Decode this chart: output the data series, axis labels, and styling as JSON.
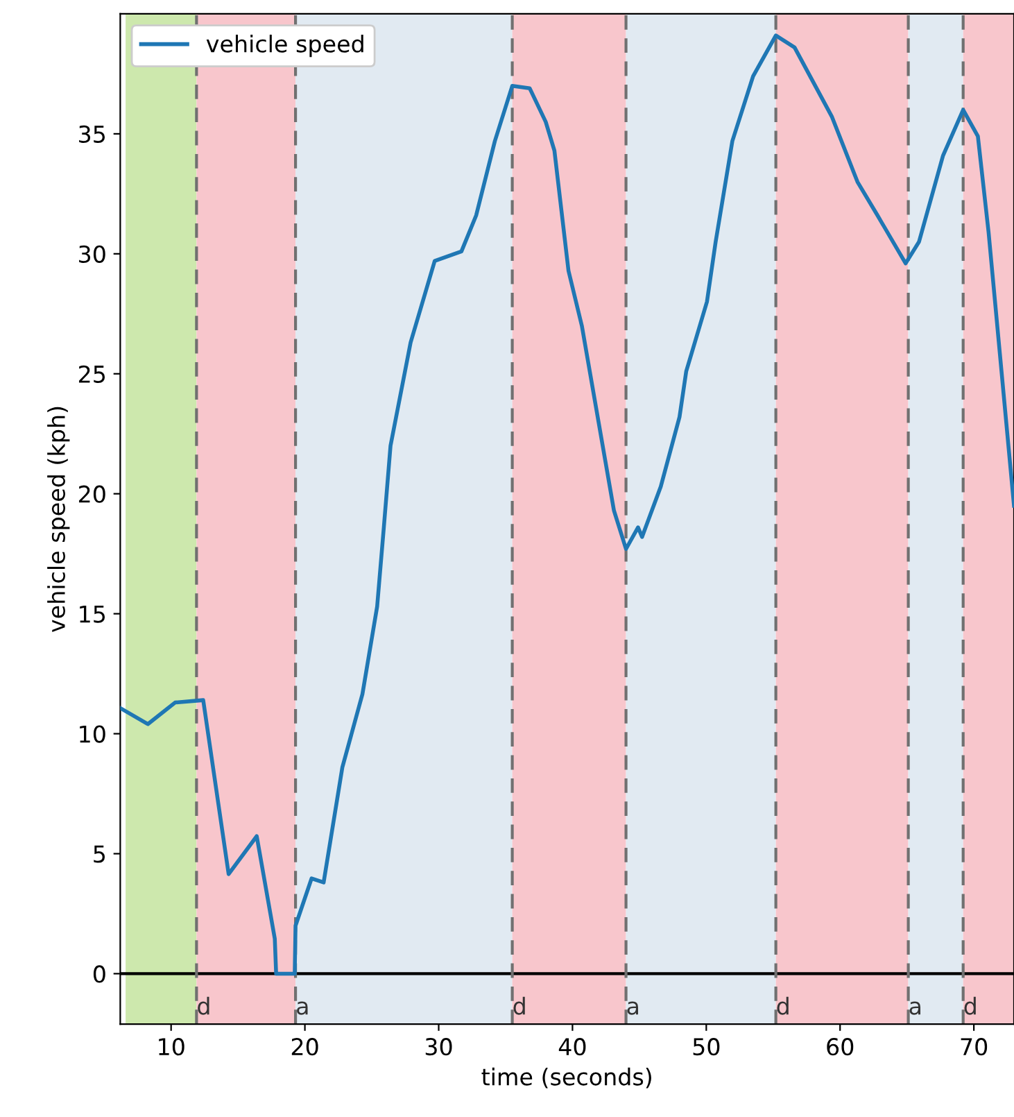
{
  "chart_data": {
    "type": "line",
    "xlabel": "time (seconds)",
    "ylabel": "vehicle speed (kph)",
    "xlim": [
      6.2,
      73
    ],
    "ylim": [
      -2.1,
      40
    ],
    "xticks": [
      10,
      20,
      30,
      40,
      50,
      60,
      70
    ],
    "yticks": [
      0,
      5,
      10,
      15,
      20,
      25,
      30,
      35
    ],
    "grid": false,
    "legend": "top left",
    "series": [
      {
        "name": "vehicle speed",
        "color": "#1f77b4",
        "x": [
          6.2,
          8.26,
          10.3,
          12.4,
          14.3,
          16.4,
          17.75,
          17.85,
          19.24,
          19.3,
          20.5,
          21.4,
          22.8,
          24.3,
          25.4,
          25.9,
          26.4,
          27.9,
          29.7,
          31.7,
          32.8,
          34.2,
          35.5,
          36.8,
          38.0,
          38.65,
          39.7,
          40.7,
          43.1,
          44.0,
          44.9,
          45.2,
          46.6,
          48.0,
          48.5,
          50.05,
          50.7,
          51.95,
          53.5,
          55.2,
          56.6,
          59.4,
          61.3,
          62.8,
          64.9,
          65.9,
          67.7,
          69.2,
          70.3,
          71.1,
          73.0
        ],
        "values": [
          11.07,
          10.4,
          11.3,
          11.4,
          4.15,
          5.73,
          1.46,
          0,
          0,
          2.0,
          3.97,
          3.8,
          8.6,
          11.65,
          15.3,
          18.6,
          22.0,
          26.3,
          29.7,
          30.1,
          31.6,
          34.7,
          37.0,
          36.9,
          35.5,
          34.3,
          29.3,
          27.0,
          19.3,
          17.7,
          18.6,
          18.2,
          20.3,
          23.2,
          25.1,
          28.0,
          30.5,
          34.7,
          37.4,
          39.1,
          38.6,
          35.7,
          33.0,
          31.6,
          29.6,
          30.5,
          34.1,
          36.0,
          34.9,
          30.9,
          19.5
        ]
      }
    ],
    "ref_lines": [
      {
        "axis": "y",
        "value": 0,
        "color": "#000000",
        "line_style": "solid"
      },
      {
        "axis": "x",
        "value": 11.9,
        "label": "d",
        "color": "#707070",
        "line_style": "dashed"
      },
      {
        "axis": "x",
        "value": 19.3,
        "label": "a",
        "color": "#707070",
        "line_style": "dashed"
      },
      {
        "axis": "x",
        "value": 35.5,
        "label": "d",
        "color": "#707070",
        "line_style": "dashed"
      },
      {
        "axis": "x",
        "value": 44.0,
        "label": "a",
        "color": "#707070",
        "line_style": "dashed"
      },
      {
        "axis": "x",
        "value": 55.2,
        "label": "d",
        "color": "#707070",
        "line_style": "dashed"
      },
      {
        "axis": "x",
        "value": 65.1,
        "label": "a",
        "color": "#707070",
        "line_style": "dashed"
      },
      {
        "axis": "x",
        "value": 69.2,
        "label": "d",
        "color": "#707070",
        "line_style": "dashed"
      }
    ],
    "bands": [
      {
        "axis": "x",
        "from": 6.6,
        "to": 11.9,
        "color": "#cde8ad"
      },
      {
        "axis": "x",
        "from": 11.9,
        "to": 19.3,
        "color": "#f8c6cc"
      },
      {
        "axis": "x",
        "from": 19.3,
        "to": 35.5,
        "color": "#e1eaf2"
      },
      {
        "axis": "x",
        "from": 35.5,
        "to": 44.0,
        "color": "#f8c6cc"
      },
      {
        "axis": "x",
        "from": 44.0,
        "to": 55.2,
        "color": "#e1eaf2"
      },
      {
        "axis": "x",
        "from": 55.2,
        "to": 65.1,
        "color": "#f8c6cc"
      },
      {
        "axis": "x",
        "from": 65.1,
        "to": 69.2,
        "color": "#e1eaf2"
      },
      {
        "axis": "x",
        "from": 69.2,
        "to": 73,
        "color": "#f8c6cc"
      }
    ]
  }
}
